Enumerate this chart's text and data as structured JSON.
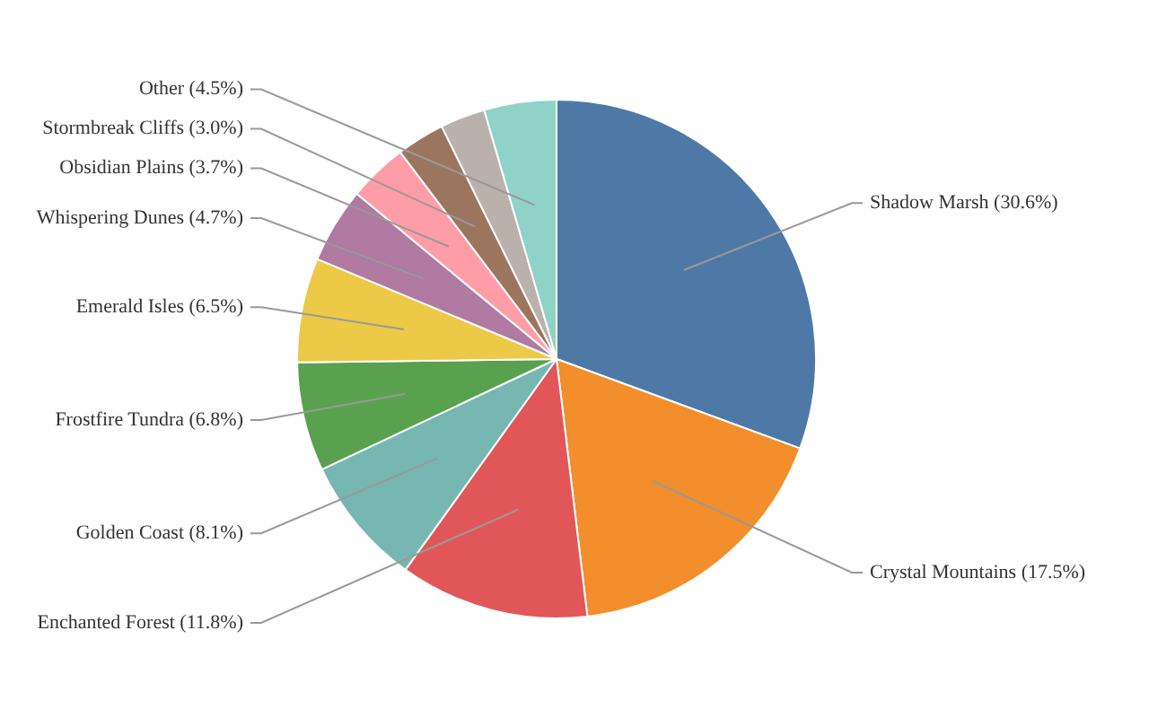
{
  "chart_data": {
    "type": "pie",
    "categories": [
      "Shadow Marsh",
      "Crystal Mountains",
      "Enchanted Forest",
      "Golden Coast",
      "Frostfire Tundra",
      "Emerald Isles",
      "Whispering Dunes",
      "Obsidian Plains",
      "Stormbreak Cliffs",
      null,
      "Other"
    ],
    "values": [
      30.6,
      17.5,
      11.8,
      8.1,
      6.8,
      6.5,
      4.7,
      3.7,
      3.0,
      2.8,
      4.5
    ],
    "value_labels": [
      "(30.6%)",
      "(17.5%)",
      "(11.8%)",
      "(8.1%)",
      "(6.8%)",
      "(6.5%)",
      "(4.7%)",
      "(3.7%)",
      "(3.0%)",
      null,
      "(4.5%)"
    ],
    "colors": [
      "#4e79a7",
      "#f28e2b",
      "#e15759",
      "#76b7b2",
      "#59a14f",
      "#edc948",
      "#b07aa1",
      "#ff9da7",
      "#9c755f",
      "#bab0ac",
      "#8fd3c8"
    ]
  }
}
